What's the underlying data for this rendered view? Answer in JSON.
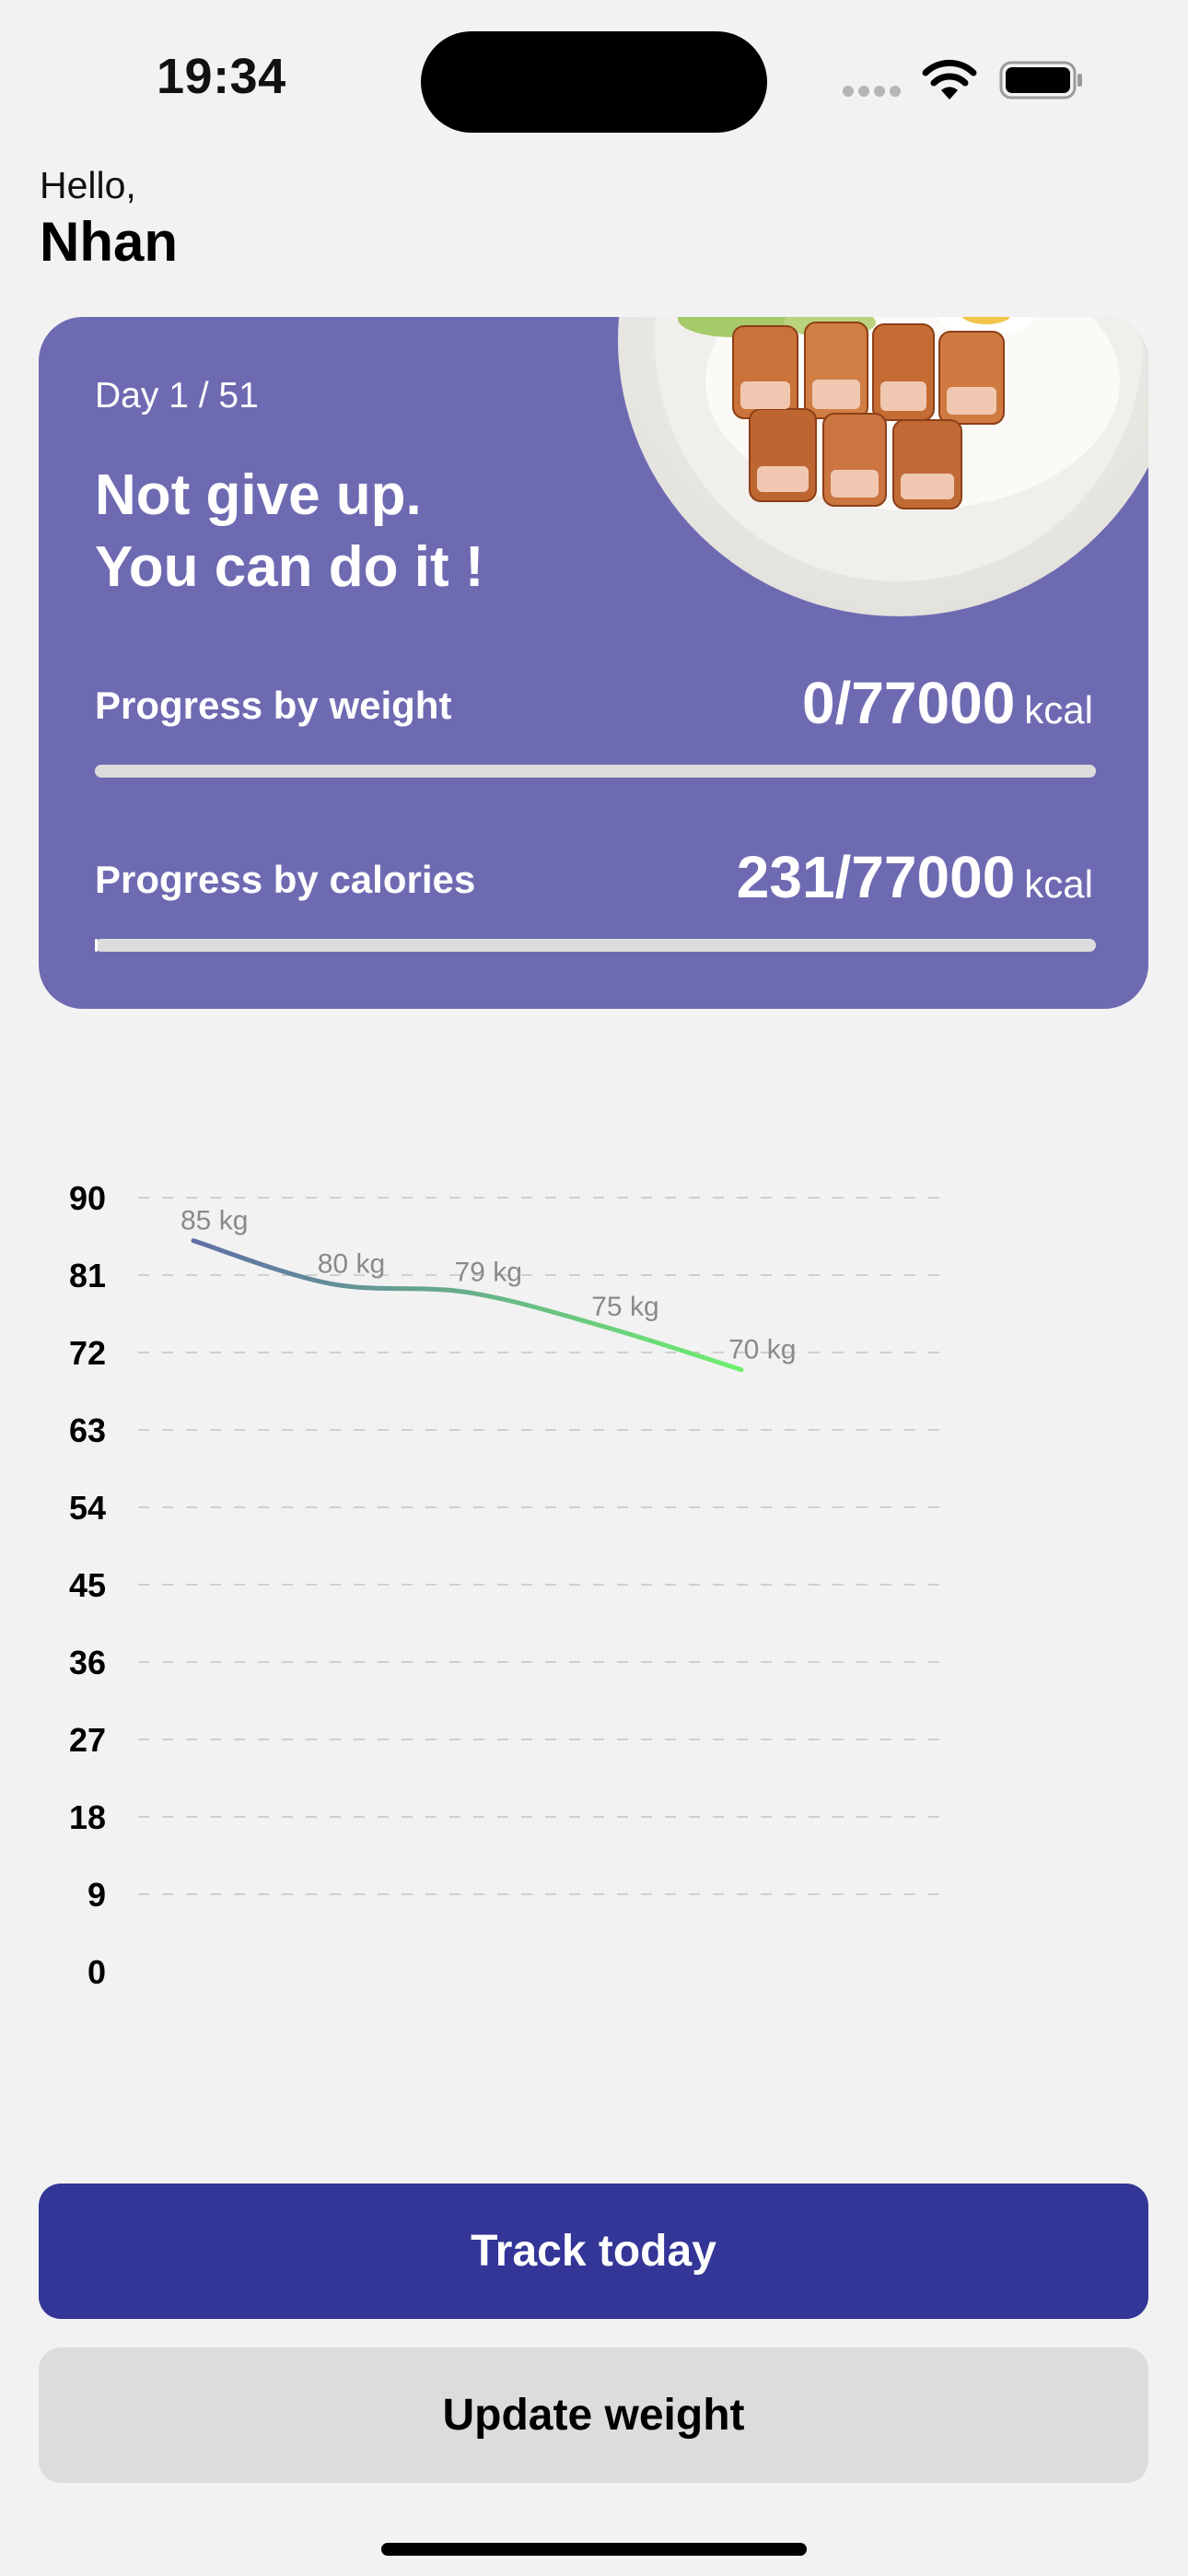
{
  "status_bar": {
    "time": "19:34",
    "icons": [
      "cellular-signal-icon",
      "wifi-icon",
      "battery-icon"
    ]
  },
  "greeting": {
    "hello": "Hello,",
    "name": "Nhan"
  },
  "progress_card": {
    "day": "Day 1 / 51",
    "motivation_line1": "Not give up.",
    "motivation_line2": "You can do it !",
    "weight": {
      "label": "Progress by weight",
      "value": "0/77000",
      "unit": "kcal",
      "fraction": 0
    },
    "calories": {
      "label": "Progress by calories",
      "value": "231/77000",
      "unit": "kcal",
      "fraction": 0.003
    },
    "image": "food-plate-image"
  },
  "chart_data": {
    "type": "line",
    "title": "",
    "xlabel": "",
    "ylabel": "",
    "ylim": [
      0,
      90
    ],
    "yticks": [
      90,
      81,
      72,
      63,
      54,
      45,
      36,
      27,
      18,
      9,
      0
    ],
    "grid": true,
    "series": [
      {
        "values": [
          85,
          80,
          79,
          75,
          70
        ],
        "point_labels": [
          "85 kg",
          "80 kg",
          "79 kg",
          "75 kg",
          "70 kg"
        ]
      }
    ],
    "colors": {
      "start": "#5f6ea6",
      "end": "#6ef06e"
    }
  },
  "actions": {
    "track_today": "Track today",
    "update_weight": "Update weight"
  },
  "colors": {
    "card": "#6e6ab2",
    "primary_button": "#333597",
    "secondary_button": "#dcdcdc",
    "background": "#f2f2f2"
  }
}
